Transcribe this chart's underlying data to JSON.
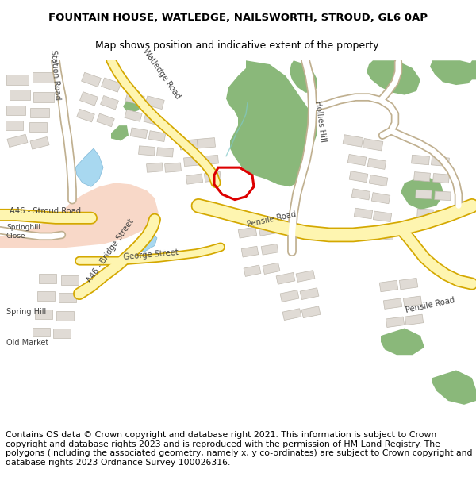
{
  "title_line1": "FOUNTAIN HOUSE, WATLEDGE, NAILSWORTH, STROUD, GL6 0AP",
  "title_line2": "Map shows position and indicative extent of the property.",
  "footer_text": "Contains OS data © Crown copyright and database right 2021. This information is subject to Crown copyright and database rights 2023 and is reproduced with the permission of HM Land Registry. The polygons (including the associated geometry, namely x, y co-ordinates) are subject to Crown copyright and database rights 2023 Ordnance Survey 100026316.",
  "title_fontsize": 9.5,
  "subtitle_fontsize": 9.0,
  "footer_fontsize": 7.8,
  "bg_color": "#ffffff",
  "map_bg": "#f8f6f3",
  "road_yellow_fill": "#fef5b0",
  "road_yellow_edge": "#d4a800",
  "road_white_fill": "#ffffff",
  "road_white_edge": "#c0b090",
  "road_pink_fill": "#f8d8c8",
  "road_pink_edge": "#d09080",
  "green_area": "#8ab87a",
  "building_color": "#e0dbd5",
  "building_outline": "#c0bab0",
  "water_blue": "#a8d8f0",
  "water_river": "#b0d8f8",
  "red_outline": "#dd0000",
  "label_color": "#404040",
  "teal_line": "#80c8c8"
}
